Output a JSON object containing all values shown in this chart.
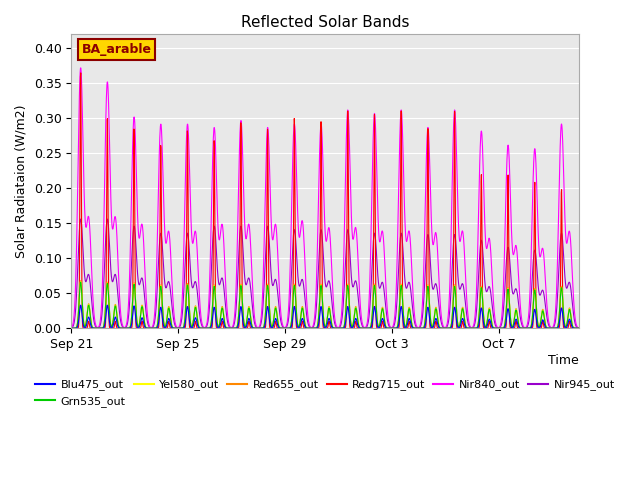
{
  "title": "Reflected Solar Bands",
  "ylabel": "Solar Radiataion (W/m2)",
  "xlabel": "Time",
  "annotation_text": "BA_arable",
  "annotation_color": "#8B0000",
  "annotation_bg": "#FFD700",
  "annotation_bg_edge": "#8B0000",
  "ylim": [
    0,
    0.42
  ],
  "yticks": [
    0.0,
    0.05,
    0.1,
    0.15,
    0.2,
    0.25,
    0.3,
    0.35,
    0.4
  ],
  "bg_color": "#e8e8e8",
  "series_colors": {
    "Blu475_out": "#0000ff",
    "Grn535_out": "#00cc00",
    "Yel580_out": "#ffff00",
    "Red655_out": "#ff8800",
    "Redg715_out": "#ff0000",
    "Nir840_out": "#ff00ff",
    "Nir945_out": "#9900cc"
  },
  "series_order": [
    "Nir945_out",
    "Nir840_out",
    "Redg715_out",
    "Red655_out",
    "Yel580_out",
    "Grn535_out",
    "Blu475_out"
  ],
  "legend_order": [
    "Blu475_out",
    "Grn535_out",
    "Yel580_out",
    "Red655_out",
    "Redg715_out",
    "Nir840_out",
    "Nir945_out"
  ],
  "xtick_labels": [
    "Sep 21",
    "Sep 25",
    "Sep 29",
    "Oct 3",
    "Oct 7"
  ],
  "num_days": 19,
  "figsize": [
    6.4,
    4.8
  ],
  "dpi": 100
}
